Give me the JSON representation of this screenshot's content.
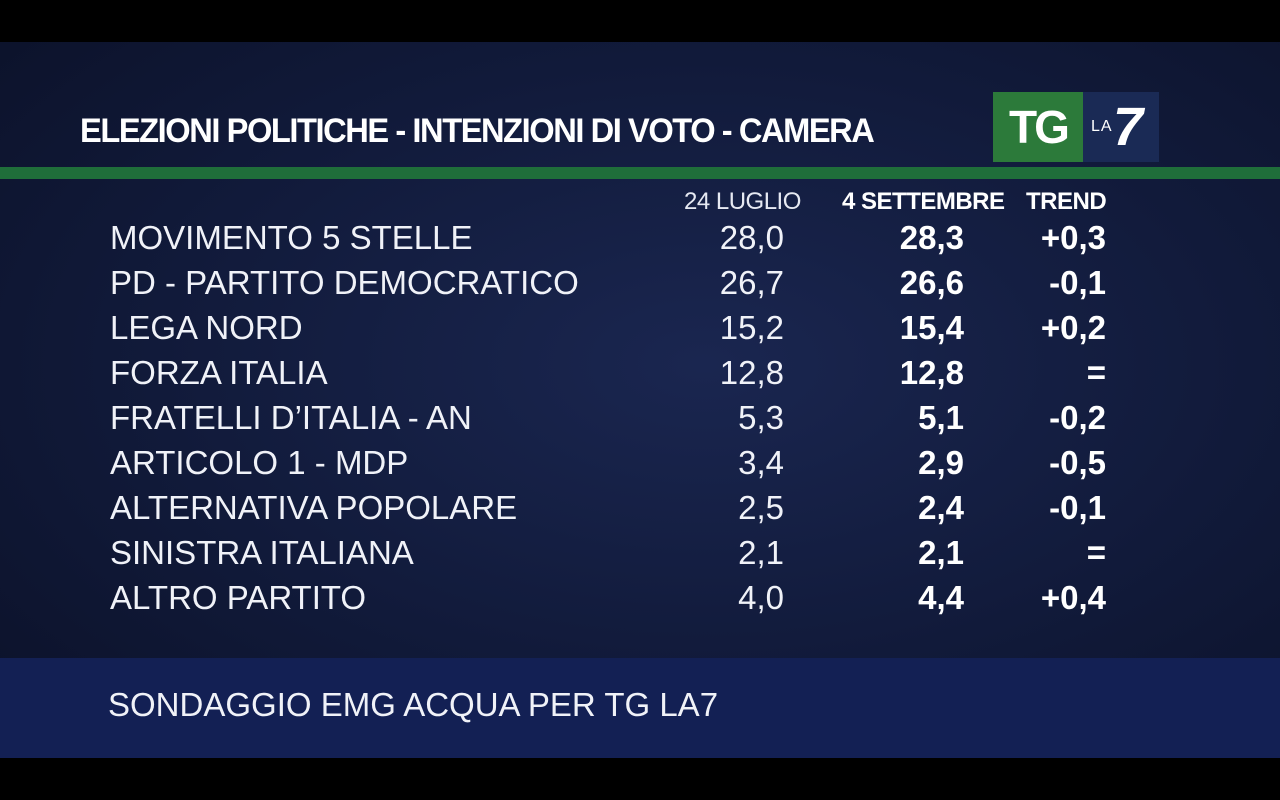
{
  "title": "ELEZIONI POLITICHE - INTENZIONI DI VOTO - CAMERA",
  "logo": {
    "tg": "TG",
    "la": "LA",
    "seven": "7",
    "colors": {
      "tg_bg": "#2c7a3a",
      "la7_bg": "#1a2a55"
    }
  },
  "chart_data": {
    "type": "table",
    "columns": [
      "24 LUGLIO",
      "4 SETTEMBRE",
      "TREND"
    ],
    "rows": [
      {
        "party": "MOVIMENTO 5 STELLE",
        "v1": "28,0",
        "v2": "28,3",
        "trend": "+0,3"
      },
      {
        "party": "PD - PARTITO DEMOCRATICO",
        "v1": "26,7",
        "v2": "26,6",
        "trend": "-0,1"
      },
      {
        "party": "LEGA NORD",
        "v1": "15,2",
        "v2": "15,4",
        "trend": "+0,2"
      },
      {
        "party": "FORZA ITALIA",
        "v1": "12,8",
        "v2": "12,8",
        "trend": "="
      },
      {
        "party": "FRATELLI D’ITALIA - AN",
        "v1": "5,3",
        "v2": "5,1",
        "trend": "-0,2"
      },
      {
        "party": "ARTICOLO 1 - MDP",
        "v1": "3,4",
        "v2": "2,9",
        "trend": "-0,5"
      },
      {
        "party": "ALTERNATIVA POPOLARE",
        "v1": "2,5",
        "v2": "2,4",
        "trend": "-0,1"
      },
      {
        "party": "SINISTRA ITALIANA",
        "v1": "2,1",
        "v2": "2,1",
        "trend": "="
      },
      {
        "party": "ALTRO PARTITO",
        "v1": "4,0",
        "v2": "4,4",
        "trend": "+0,4"
      }
    ]
  },
  "source": "SONDAGGIO EMG ACQUA PER TG LA7",
  "colors": {
    "background": "#111a3a",
    "accent_line": "#1f6e3a",
    "footer": "#132054",
    "text": "#ffffff"
  }
}
